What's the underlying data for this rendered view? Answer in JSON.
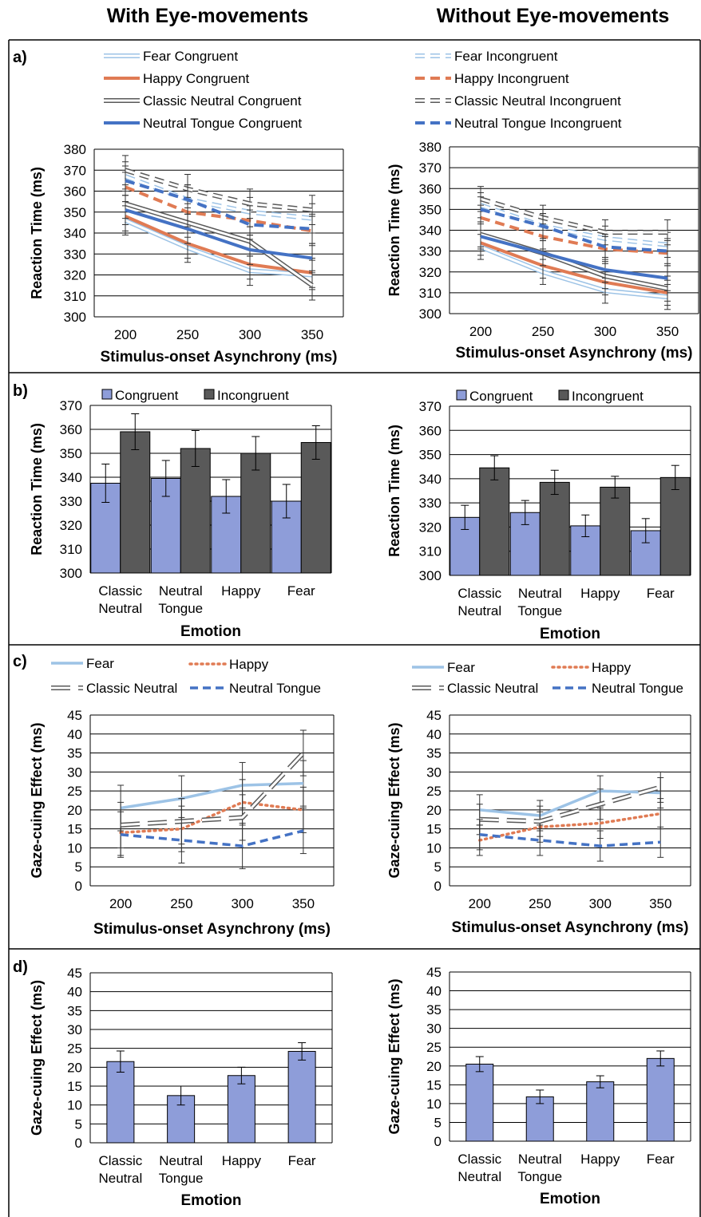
{
  "column_titles": [
    "With Eye-movements",
    "Without Eye-movements"
  ],
  "panel_labels": [
    "a)",
    "b)",
    "c)",
    "d)"
  ],
  "colors": {
    "fear": "#9dc3e6",
    "happy": "#e07b54",
    "neutral": "#595959",
    "tongue": "#4472c4",
    "congruent_bar": "#8e9dd9",
    "incongruent_bar": "#595959"
  },
  "chart_data": [
    {
      "panel": "a",
      "condition": "With Eye-movements",
      "type": "line",
      "x": [
        200,
        250,
        300,
        350
      ],
      "xlabel": "Stimulus-onset Asynchrony (ms)",
      "ylabel": "Reaction Time (ms)",
      "ylim": [
        300,
        380
      ],
      "yticks": [
        300,
        310,
        320,
        330,
        340,
        350,
        360,
        370,
        380
      ],
      "grid": true,
      "legend": "top",
      "series": [
        {
          "name": "Fear Congruent",
          "values": [
            346,
            333,
            322,
            320
          ]
        },
        {
          "name": "Happy Congruent",
          "values": [
            348,
            335,
            325,
            321
          ]
        },
        {
          "name": "Classic Neutral Congruent",
          "values": [
            354,
            345,
            336,
            315
          ]
        },
        {
          "name": "Neutral Tongue Congruent",
          "values": [
            351,
            342,
            332,
            328
          ]
        },
        {
          "name": "Fear Incongruent",
          "values": [
            367,
            356,
            350,
            347
          ]
        },
        {
          "name": "Happy Incongruent",
          "values": [
            362,
            350,
            346,
            341
          ]
        },
        {
          "name": "Classic Neutral Incongruent",
          "values": [
            370,
            361,
            354,
            351
          ]
        },
        {
          "name": "Neutral Tongue Incongruent",
          "values": [
            365,
            356,
            344,
            342
          ]
        }
      ]
    },
    {
      "panel": "a",
      "condition": "Without Eye-movements",
      "type": "line",
      "x": [
        200,
        250,
        300,
        350
      ],
      "xlabel": "Stimulus-onset Asynchrony (ms)",
      "ylabel": "Reaction Time (ms)",
      "ylim": [
        300,
        380
      ],
      "yticks": [
        300,
        310,
        320,
        330,
        340,
        350,
        360,
        370,
        380
      ],
      "grid": true,
      "legend": "top",
      "series": [
        {
          "name": "Fear Congruent",
          "values": [
            332,
            320,
            311,
            308
          ]
        },
        {
          "name": "Happy Congruent",
          "values": [
            334,
            323,
            315,
            310
          ]
        },
        {
          "name": "Classic Neutral Congruent",
          "values": [
            338,
            329,
            318,
            312
          ]
        },
        {
          "name": "Neutral Tongue Congruent",
          "values": [
            337,
            329,
            321,
            317
          ]
        },
        {
          "name": "Fear Incongruent",
          "values": [
            352,
            342,
            336,
            333
          ]
        },
        {
          "name": "Happy Incongruent",
          "values": [
            346,
            337,
            331,
            329
          ]
        },
        {
          "name": "Classic Neutral Incongruent",
          "values": [
            355,
            346,
            339,
            339
          ]
        },
        {
          "name": "Neutral Tongue Incongruent",
          "values": [
            350,
            342,
            332,
            330
          ]
        }
      ]
    },
    {
      "panel": "b",
      "condition": "With Eye-movements",
      "type": "bar",
      "categories": [
        "Classic\nNeutral",
        "Neutral\nTongue",
        "Happy",
        "Fear"
      ],
      "xlabel": "Emotion",
      "ylabel": "Reaction Time (ms)",
      "ylim": [
        300,
        370
      ],
      "yticks": [
        300,
        310,
        320,
        330,
        340,
        350,
        360,
        370
      ],
      "grid": true,
      "legend": "top",
      "series": [
        {
          "name": "Congruent",
          "values": [
            337.5,
            339.5,
            332,
            330
          ],
          "errors": [
            8,
            7.5,
            7,
            7
          ]
        },
        {
          "name": "Incongruent",
          "values": [
            359,
            352,
            350,
            354.5
          ],
          "errors": [
            7.5,
            7.5,
            7,
            7
          ]
        }
      ]
    },
    {
      "panel": "b",
      "condition": "Without Eye-movements",
      "type": "bar",
      "categories": [
        "Classic\nNeutral",
        "Neutral\nTongue",
        "Happy",
        "Fear"
      ],
      "xlabel": "Emotion",
      "ylabel": "Reaction Time (ms)",
      "ylim": [
        300,
        370
      ],
      "yticks": [
        300,
        310,
        320,
        330,
        340,
        350,
        360,
        370
      ],
      "grid": true,
      "legend": "top",
      "series": [
        {
          "name": "Congruent",
          "values": [
            324,
            326,
            320.5,
            318.5
          ],
          "errors": [
            5,
            5,
            4.5,
            5
          ]
        },
        {
          "name": "Incongruent",
          "values": [
            344.5,
            338.5,
            336.5,
            340.5
          ],
          "errors": [
            5,
            5,
            4.5,
            5
          ]
        }
      ]
    },
    {
      "panel": "c",
      "condition": "With Eye-movements",
      "type": "line",
      "x": [
        200,
        250,
        300,
        350
      ],
      "xlabel": "Stimulus-onset Asynchrony (ms)",
      "ylabel": "Gaze-cuing Effect (ms)",
      "ylim": [
        0,
        45
      ],
      "yticks": [
        0,
        5,
        10,
        15,
        20,
        25,
        30,
        35,
        40,
        45
      ],
      "grid": true,
      "legend": "top",
      "series": [
        {
          "name": "Fear",
          "values": [
            20.5,
            23,
            26.5,
            27
          ]
        },
        {
          "name": "Happy",
          "values": [
            14,
            15,
            22,
            20
          ]
        },
        {
          "name": "Classic Neutral",
          "values": [
            16,
            17,
            18,
            35
          ]
        },
        {
          "name": "Neutral Tongue",
          "values": [
            13.5,
            12,
            10.5,
            14.5
          ]
        }
      ]
    },
    {
      "panel": "c",
      "condition": "Without Eye-movements",
      "type": "line",
      "x": [
        200,
        250,
        300,
        350
      ],
      "xlabel": "Stimulus-onset Asynchrony (ms)",
      "ylabel": "Gaze-cuing Effect (ms)",
      "ylim": [
        0,
        45
      ],
      "yticks": [
        0,
        5,
        10,
        15,
        20,
        25,
        30,
        35,
        40,
        45
      ],
      "grid": true,
      "legend": "top",
      "series": [
        {
          "name": "Fear",
          "values": [
            20,
            18.5,
            25,
            24.5
          ]
        },
        {
          "name": "Happy",
          "values": [
            12,
            15.5,
            16.5,
            19
          ]
        },
        {
          "name": "Classic Neutral",
          "values": [
            17.5,
            17,
            21.5,
            26
          ]
        },
        {
          "name": "Neutral Tongue",
          "values": [
            13.5,
            12,
            10.5,
            11.5
          ]
        }
      ]
    },
    {
      "panel": "d",
      "condition": "With Eye-movements",
      "type": "bar",
      "categories": [
        "Classic\nNeutral",
        "Neutral\nTongue",
        "Happy",
        "Fear"
      ],
      "xlabel": "Emotion",
      "ylabel": "Gaze-cuing Effect (ms)",
      "ylim": [
        0,
        45
      ],
      "yticks": [
        0,
        5,
        10,
        15,
        20,
        25,
        30,
        35,
        40,
        45
      ],
      "grid": true,
      "series": [
        {
          "values": [
            21.5,
            12.5,
            17.8,
            24.2
          ],
          "errors": [
            2.8,
            2.5,
            2.2,
            2.3
          ]
        }
      ]
    },
    {
      "panel": "d",
      "condition": "Without Eye-movements",
      "type": "bar",
      "categories": [
        "Classic\nNeutral",
        "Neutral\nTongue",
        "Happy",
        "Fear"
      ],
      "xlabel": "Emotion",
      "ylabel": "Gaze-cuing Effect (ms)",
      "ylim": [
        0,
        45
      ],
      "yticks": [
        0,
        5,
        10,
        15,
        20,
        25,
        30,
        35,
        40,
        45
      ],
      "grid": true,
      "series": [
        {
          "values": [
            20.5,
            11.8,
            15.8,
            22
          ],
          "errors": [
            2,
            1.8,
            1.6,
            2
          ]
        }
      ]
    }
  ]
}
